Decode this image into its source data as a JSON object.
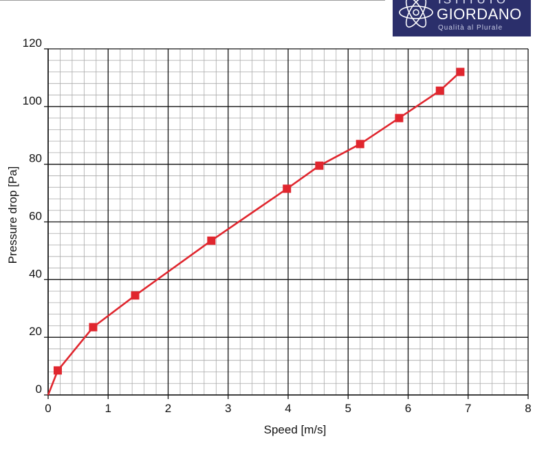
{
  "logo": {
    "line1": "ISTITUTO",
    "line2": "GIORDANO",
    "tagline": "Qualità al Plurale",
    "background": "#2b2f6b"
  },
  "chart_data": {
    "type": "line",
    "xlabel": "Speed [m/s]",
    "ylabel": "Pressure drop [Pa]",
    "xlim": [
      0,
      8
    ],
    "ylim": [
      0,
      120
    ],
    "x_ticks": [
      0,
      1,
      2,
      3,
      4,
      5,
      6,
      7,
      8
    ],
    "y_ticks": [
      0,
      20,
      40,
      60,
      80,
      100,
      120
    ],
    "minor_x_step": 0.2,
    "minor_y_step": 4,
    "grid": true,
    "series": [
      {
        "color": "#e0262e",
        "marker": "square",
        "x": [
          0,
          0.16,
          0.75,
          1.45,
          2.72,
          3.98,
          4.52,
          5.2,
          5.85,
          6.53,
          6.87
        ],
        "y": [
          0,
          8.5,
          23.5,
          34.5,
          53.5,
          71.5,
          79.5,
          87,
          96,
          105.5,
          112
        ]
      }
    ]
  }
}
